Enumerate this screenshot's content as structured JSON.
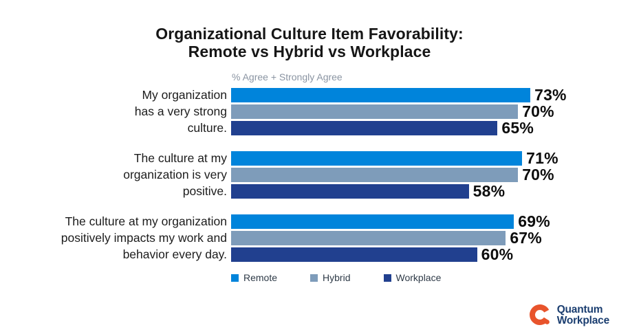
{
  "title": {
    "line1": "Organizational Culture Item Favorability:",
    "line2": "Remote vs Hybrid vs Workplace"
  },
  "subtitle": "% Agree + Strongly Agree",
  "legend": {
    "items": [
      {
        "label": "Remote",
        "color": "#0084DB"
      },
      {
        "label": "Hybrid",
        "color": "#7E9CBA"
      },
      {
        "label": "Workplace",
        "color": "#21408F"
      }
    ]
  },
  "logo": {
    "line1": "Quantum",
    "line2": "Workplace",
    "icon_color": "#E8542C",
    "text_color": "#1B3E70"
  },
  "chart_data": {
    "type": "bar",
    "orientation": "horizontal",
    "title": "Organizational Culture Item Favorability: Remote vs Hybrid vs Workplace",
    "value_axis_note": "% Agree + Strongly Agree",
    "unit": "%",
    "xlim": [
      0,
      100
    ],
    "grid": false,
    "legend_position": "bottom",
    "series_names": [
      "Remote",
      "Hybrid",
      "Workplace"
    ],
    "series_colors": [
      "#0084DB",
      "#7E9CBA",
      "#21408F"
    ],
    "categories": [
      "My organization has a very strong culture.",
      "The culture at my organization is very positive.",
      "The culture at my organization positively impacts my work and behavior every day."
    ],
    "groups": [
      {
        "label_lines": [
          "My organization",
          "has a very strong",
          "culture."
        ],
        "values": [
          73,
          70,
          65
        ],
        "value_labels": [
          "73%",
          "70%",
          "65%"
        ]
      },
      {
        "label_lines": [
          "The culture at my",
          "organization is very",
          "positive."
        ],
        "values": [
          71,
          70,
          58
        ],
        "value_labels": [
          "71%",
          "70%",
          "58%"
        ]
      },
      {
        "label_lines": [
          "The culture at my organization",
          "positively impacts my work and",
          "behavior every day."
        ],
        "values": [
          69,
          67,
          60
        ],
        "value_labels": [
          "69%",
          "67%",
          "60%"
        ]
      }
    ]
  }
}
